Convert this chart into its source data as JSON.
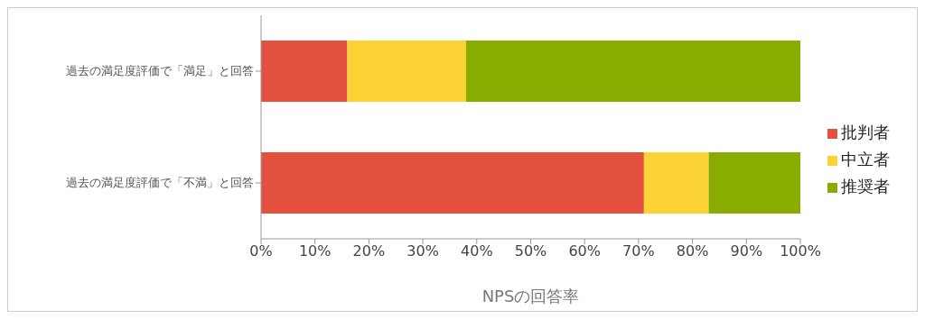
{
  "chart_data": {
    "type": "bar",
    "orientation": "horizontal",
    "stacked": true,
    "xlabel": "NPSの回答率",
    "categories": [
      "過去の満足度評価で「満足」と回答",
      "過去の満足度評価で「不満」と回答"
    ],
    "series": [
      {
        "name": "批判者",
        "color": "#e4503e",
        "values": [
          16,
          71
        ]
      },
      {
        "name": "中立者",
        "color": "#fbd334",
        "values": [
          22,
          12
        ]
      },
      {
        "name": "推奨者",
        "color": "#88ac00",
        "values": [
          62,
          17
        ]
      }
    ],
    "xlim": [
      0,
      100
    ],
    "xticks": [
      {
        "value": 0,
        "label": "0%"
      },
      {
        "value": 10,
        "label": "10%"
      },
      {
        "value": 20,
        "label": "20%"
      },
      {
        "value": 30,
        "label": "30%"
      },
      {
        "value": 40,
        "label": "40%"
      },
      {
        "value": 50,
        "label": "50%"
      },
      {
        "value": 60,
        "label": "60%"
      },
      {
        "value": 70,
        "label": "70%"
      },
      {
        "value": 80,
        "label": "80%"
      },
      {
        "value": 90,
        "label": "90%"
      },
      {
        "value": 100,
        "label": "100%"
      }
    ],
    "grid": false,
    "legend": "right"
  }
}
